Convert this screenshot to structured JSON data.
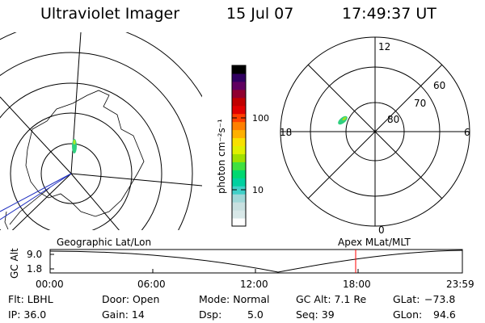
{
  "header": {
    "instrument": "Ultraviolet Imager",
    "date": "15 Jul 07",
    "time": "17:49:37 UT"
  },
  "colorbar": {
    "unit_label": "photon cm⁻²s⁻¹",
    "tick_100": "100",
    "tick_10": "10",
    "colors": [
      "#ffffff",
      "#d8e8e8",
      "#c8e0e0",
      "#a0d8d8",
      "#40d0c8",
      "#00d0a0",
      "#00d870",
      "#40e040",
      "#a0e000",
      "#e0f000",
      "#f8e000",
      "#ffb000",
      "#ff8000",
      "#ff4000",
      "#e00000",
      "#c00000",
      "#900030",
      "#600060",
      "#300060",
      "#000000"
    ]
  },
  "left_map": {
    "label": "Geographic Lat/Lon"
  },
  "right_map": {
    "label": "Apex MLat/MLT",
    "mlt_12": "12",
    "mlt_18": "18",
    "mlt_6": "6",
    "mlt_0": "0",
    "lat_60": "60",
    "lat_70": "70",
    "lat_80": "80"
  },
  "altitude_plot": {
    "ylabel": "GC Alt",
    "ytick_top": "9.0",
    "ytick_bottom": "1.8",
    "xticks": [
      "00:00",
      "06:00",
      "12:00",
      "18:00",
      "23:59"
    ],
    "marker_color": "#ff0000"
  },
  "info": {
    "filter": "Flt: LBHL",
    "ip": "IP: 36.0",
    "door": "Door: Open",
    "gain": "Gain: 14",
    "mode": "Mode: Normal",
    "dsp_label": "Dsp:",
    "dsp_value": "5.0",
    "gc_alt": "GC Alt: 7.1 Re",
    "seq": "Seq: 39",
    "glat_label": "GLat:",
    "glat_value": "−73.8",
    "glon_label": "GLon:",
    "glon_value": "94.6"
  }
}
